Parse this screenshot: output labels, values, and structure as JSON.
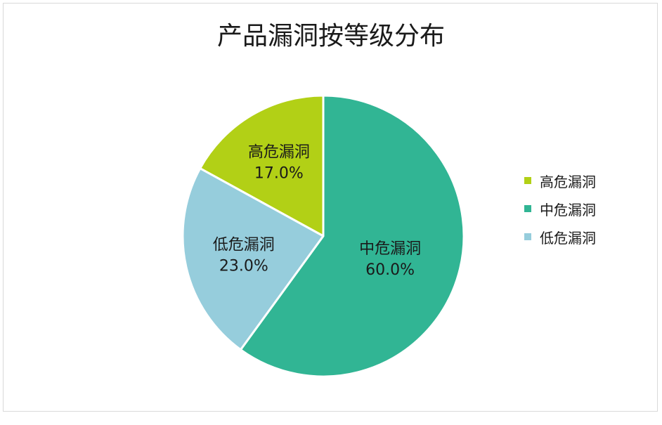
{
  "chart_data": {
    "type": "pie",
    "title": "产品漏洞按等级分布",
    "categories": [
      "高危漏洞",
      "中危漏洞",
      "低危漏洞"
    ],
    "values": [
      17.0,
      60.0,
      23.0
    ],
    "data_labels": [
      "17.0%",
      "60.0%",
      "23.0%"
    ],
    "colors": [
      "#b2d016",
      "#31b594",
      "#96cddc"
    ],
    "legend_position": "right"
  }
}
